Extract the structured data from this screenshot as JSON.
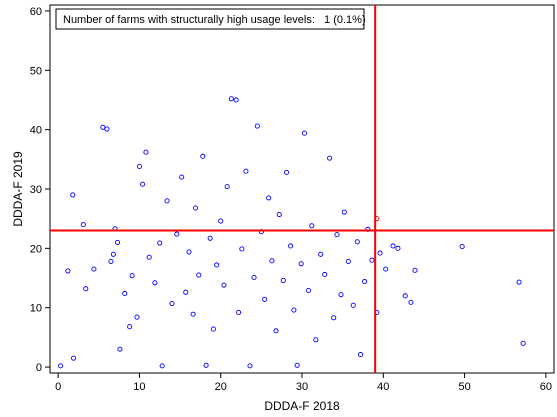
{
  "chart_data": {
    "type": "scatter",
    "xlabel": "DDDA-F 2018",
    "ylabel": "DDDA-F 2019",
    "xlim": [
      -1,
      61
    ],
    "ylim": [
      -1,
      61
    ],
    "xticks": [
      0,
      10,
      20,
      30,
      40,
      50,
      60
    ],
    "yticks": [
      0,
      10,
      20,
      30,
      40,
      50,
      60
    ],
    "grid": false,
    "annotation": "Number of farms with structurally high usage levels:   1 (0.1%)",
    "threshold_x": 39,
    "threshold_y": 23,
    "colors": {
      "points": "#0000ff",
      "highlight": "#ff0000",
      "threshold": "#ff0000"
    },
    "series": [
      {
        "values": [
          [
            0.3,
            0.2
          ],
          [
            1.2,
            16.2
          ],
          [
            1.8,
            29.0
          ],
          [
            1.9,
            1.5
          ],
          [
            3.1,
            24.0
          ],
          [
            3.4,
            13.2
          ],
          [
            4.4,
            16.5
          ],
          [
            5.5,
            40.4
          ],
          [
            6.0,
            40.1
          ],
          [
            6.5,
            17.8
          ],
          [
            6.8,
            19.0
          ],
          [
            7.0,
            23.3
          ],
          [
            7.3,
            21.0
          ],
          [
            7.6,
            3.0
          ],
          [
            8.2,
            12.4
          ],
          [
            8.8,
            6.8
          ],
          [
            9.1,
            15.4
          ],
          [
            9.7,
            8.4
          ],
          [
            10.0,
            33.8
          ],
          [
            10.4,
            30.8
          ],
          [
            10.8,
            36.2
          ],
          [
            11.2,
            18.5
          ],
          [
            11.9,
            14.2
          ],
          [
            12.5,
            20.9
          ],
          [
            12.8,
            0.2
          ],
          [
            13.4,
            28.0
          ],
          [
            14.0,
            10.7
          ],
          [
            14.6,
            22.4
          ],
          [
            15.2,
            32.0
          ],
          [
            15.7,
            12.6
          ],
          [
            16.1,
            19.4
          ],
          [
            16.6,
            8.9
          ],
          [
            16.9,
            26.8
          ],
          [
            17.3,
            15.5
          ],
          [
            17.8,
            35.5
          ],
          [
            18.2,
            0.3
          ],
          [
            18.7,
            21.7
          ],
          [
            19.1,
            6.4
          ],
          [
            19.5,
            17.2
          ],
          [
            20.0,
            24.6
          ],
          [
            20.4,
            13.8
          ],
          [
            20.8,
            30.4
          ],
          [
            21.3,
            45.2
          ],
          [
            21.9,
            45.0
          ],
          [
            22.2,
            9.2
          ],
          [
            22.6,
            19.9
          ],
          [
            23.1,
            33.0
          ],
          [
            23.6,
            0.2
          ],
          [
            24.1,
            15.1
          ],
          [
            24.5,
            40.6
          ],
          [
            25.0,
            22.8
          ],
          [
            25.4,
            11.4
          ],
          [
            25.9,
            28.5
          ],
          [
            26.3,
            17.9
          ],
          [
            26.8,
            6.1
          ],
          [
            27.2,
            25.7
          ],
          [
            27.7,
            14.6
          ],
          [
            28.1,
            32.8
          ],
          [
            28.6,
            20.4
          ],
          [
            29.0,
            9.6
          ],
          [
            29.4,
            0.3
          ],
          [
            29.9,
            17.4
          ],
          [
            30.3,
            39.4
          ],
          [
            30.8,
            12.9
          ],
          [
            31.2,
            23.8
          ],
          [
            31.7,
            4.6
          ],
          [
            32.3,
            19.0
          ],
          [
            32.8,
            15.6
          ],
          [
            33.4,
            35.2
          ],
          [
            33.9,
            8.3
          ],
          [
            34.3,
            22.3
          ],
          [
            34.8,
            12.2
          ],
          [
            35.2,
            26.1
          ],
          [
            35.7,
            17.8
          ],
          [
            36.3,
            10.4
          ],
          [
            36.8,
            21.1
          ],
          [
            37.2,
            2.1
          ],
          [
            37.7,
            14.4
          ],
          [
            38.1,
            23.2
          ],
          [
            38.6,
            18.0
          ],
          [
            39.2,
            9.2
          ],
          [
            39.6,
            19.2
          ],
          [
            40.3,
            16.5
          ],
          [
            41.2,
            20.4
          ],
          [
            41.8,
            20.0
          ],
          [
            42.7,
            12.0
          ],
          [
            43.4,
            10.9
          ],
          [
            43.9,
            16.3
          ],
          [
            49.7,
            20.3
          ],
          [
            56.7,
            14.3
          ],
          [
            57.2,
            4.0
          ]
        ]
      },
      {
        "values": [
          [
            39.2,
            25.0
          ]
        ]
      }
    ]
  }
}
